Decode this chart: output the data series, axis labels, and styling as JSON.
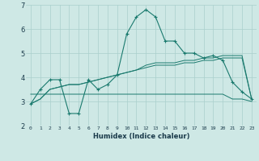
{
  "x": [
    0,
    1,
    2,
    3,
    4,
    5,
    6,
    7,
    8,
    9,
    10,
    11,
    12,
    13,
    14,
    15,
    16,
    17,
    18,
    19,
    20,
    21,
    22,
    23
  ],
  "line1": [
    2.9,
    3.5,
    3.9,
    3.9,
    2.5,
    2.5,
    3.9,
    3.5,
    3.7,
    4.1,
    5.8,
    6.5,
    6.8,
    6.5,
    5.5,
    5.5,
    5.0,
    5.0,
    4.8,
    4.9,
    4.7,
    3.8,
    3.4,
    3.1
  ],
  "line2": [
    3.3,
    3.3,
    3.3,
    3.3,
    3.3,
    3.3,
    3.3,
    3.3,
    3.3,
    3.3,
    3.3,
    3.3,
    3.3,
    3.3,
    3.3,
    3.3,
    3.3,
    3.3,
    3.3,
    3.3,
    3.3,
    3.1,
    3.1,
    3.0
  ],
  "line3": [
    2.9,
    3.1,
    3.5,
    3.6,
    3.7,
    3.7,
    3.8,
    3.9,
    4.0,
    4.1,
    4.2,
    4.3,
    4.4,
    4.5,
    4.5,
    4.5,
    4.6,
    4.6,
    4.7,
    4.7,
    4.8,
    4.8,
    4.8,
    3.1
  ],
  "line4": [
    2.9,
    3.1,
    3.5,
    3.6,
    3.7,
    3.7,
    3.8,
    3.9,
    4.0,
    4.1,
    4.2,
    4.3,
    4.5,
    4.6,
    4.6,
    4.6,
    4.7,
    4.7,
    4.8,
    4.8,
    4.9,
    4.9,
    4.9,
    3.1
  ],
  "line_color": "#1a7a6e",
  "bg_color": "#cee8e5",
  "grid_color": "#aacfcc",
  "xlabel": "Humidex (Indice chaleur)",
  "ylim": [
    2,
    7
  ],
  "xlim": [
    -0.5,
    23.5
  ],
  "yticks": [
    2,
    3,
    4,
    5,
    6,
    7
  ],
  "xticks": [
    0,
    1,
    2,
    3,
    4,
    5,
    6,
    7,
    8,
    9,
    10,
    11,
    12,
    13,
    14,
    15,
    16,
    17,
    18,
    19,
    20,
    21,
    22,
    23
  ]
}
